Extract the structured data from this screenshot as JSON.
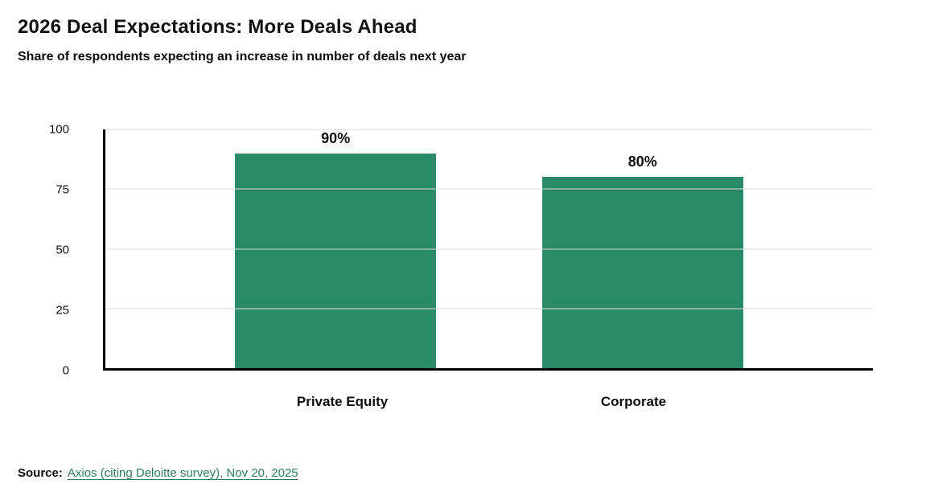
{
  "header": {
    "title": "2026 Deal Expectations: More Deals Ahead",
    "subtitle": "Share of respondents expecting an increase in number of deals next year"
  },
  "chart_data": {
    "type": "bar",
    "title": "2026 Deal Expectations: More Deals Ahead",
    "subtitle": "Share of respondents expecting an increase in number of deals next year",
    "categories": [
      "Private Equity",
      "Corporate"
    ],
    "values": [
      90,
      80
    ],
    "value_labels": [
      "90%",
      "80%"
    ],
    "xlabel": "",
    "ylabel": "",
    "ylim": [
      0,
      100
    ],
    "yticks": [
      0,
      25,
      50,
      75,
      100
    ],
    "grid": true,
    "legend": "none",
    "bar_color": "#2a8a68"
  },
  "footer": {
    "source_label": "Source:",
    "source_link_text": "Axios (citing Deloitte survey), Nov 20, 2025"
  },
  "colors": {
    "bar": "#2a8a68",
    "link": "#2e7d5b",
    "gridline": "#dcdcdc",
    "axis": "#000000",
    "background": "#ffffff"
  }
}
